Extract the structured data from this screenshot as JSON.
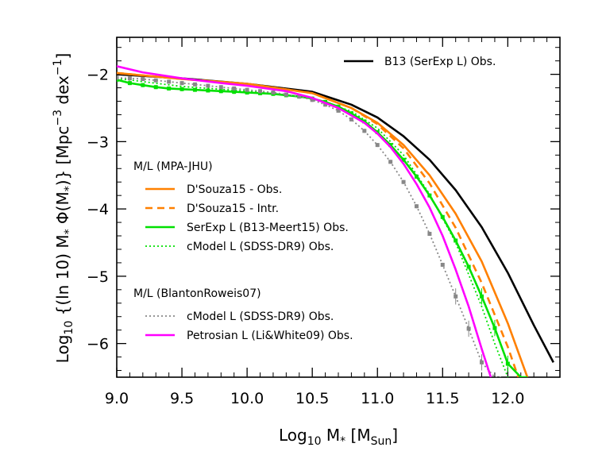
{
  "chart_data": {
    "type": "line",
    "title": "",
    "xlabel": {
      "main": "Log",
      "sub": "10",
      "var": " M",
      "star": "*",
      "unit_open": " [M",
      "unit_sub": "Sun",
      "unit_close": "]"
    },
    "ylabel": {
      "main": "Log",
      "sub": "10",
      "rest": " {(ln 10) M",
      "star": "*",
      "phi": " Φ(M",
      "star2": "*",
      "close": ")} [Mpc",
      "exp": "−3",
      "dex": " dex",
      "exp2": "−1",
      "end": "]"
    },
    "xlim": [
      9.0,
      12.4
    ],
    "ylim": [
      -6.5,
      -1.45
    ],
    "xticks": [
      {
        "value": 9.0,
        "label": "9.0"
      },
      {
        "value": 9.5,
        "label": "9.5"
      },
      {
        "value": 10.0,
        "label": "10.0"
      },
      {
        "value": 10.5,
        "label": "10.5"
      },
      {
        "value": 11.0,
        "label": "11.0"
      },
      {
        "value": 11.5,
        "label": "11.5"
      },
      {
        "value": 12.0,
        "label": "12.0"
      }
    ],
    "yticks": [
      {
        "value": -2,
        "label": "−2"
      },
      {
        "value": -3,
        "label": "−3"
      },
      {
        "value": -4,
        "label": "−4"
      },
      {
        "value": -5,
        "label": "−5"
      },
      {
        "value": -6,
        "label": "−6"
      }
    ],
    "legend_groups": [
      {
        "heading": "M/L (MPA-JHU)"
      },
      {
        "heading": "M/L (BlantonRoweis07)"
      }
    ],
    "series": [
      {
        "name": "B13 (SerExp L) Obs.",
        "color": "#000000",
        "dash": "solid",
        "group": -1,
        "markers": false,
        "x": [
          9.0,
          9.5,
          10.0,
          10.5,
          10.8,
          11.0,
          11.2,
          11.4,
          11.6,
          11.8,
          12.0,
          12.2,
          12.35
        ],
        "y": [
          -2.0,
          -2.06,
          -2.14,
          -2.26,
          -2.45,
          -2.64,
          -2.92,
          -3.27,
          -3.72,
          -4.27,
          -4.95,
          -5.73,
          -6.28
        ]
      },
      {
        "name": "D'Souza15 - Obs.",
        "color": "#ff8000",
        "dash": "solid",
        "group": 0,
        "markers": false,
        "x": [
          9.0,
          9.5,
          10.0,
          10.5,
          10.8,
          11.0,
          11.2,
          11.4,
          11.6,
          11.8,
          12.0,
          12.15
        ],
        "y": [
          -1.98,
          -2.07,
          -2.14,
          -2.28,
          -2.5,
          -2.72,
          -3.05,
          -3.5,
          -4.07,
          -4.78,
          -5.7,
          -6.5
        ]
      },
      {
        "name": "D'Souza15 - Intr.",
        "color": "#ff8000",
        "dash": "dashed",
        "group": 0,
        "markers": false,
        "x": [
          9.0,
          9.5,
          10.0,
          10.5,
          10.8,
          11.0,
          11.2,
          11.4,
          11.6,
          11.8,
          12.0,
          12.08
        ],
        "y": [
          -1.98,
          -2.07,
          -2.14,
          -2.28,
          -2.5,
          -2.74,
          -3.1,
          -3.62,
          -4.28,
          -5.1,
          -6.05,
          -6.5
        ]
      },
      {
        "name": "SerExp L (B13-Meert15) Obs.",
        "color": "#00e000",
        "dash": "solid",
        "group": 0,
        "markers": true,
        "x": [
          9.0,
          9.1,
          9.2,
          9.3,
          9.4,
          9.5,
          9.6,
          9.7,
          9.8,
          9.9,
          10.0,
          10.1,
          10.2,
          10.3,
          10.4,
          10.5,
          10.6,
          10.7,
          10.8,
          10.9,
          11.0,
          11.1,
          11.2,
          11.3,
          11.4,
          11.5,
          11.6,
          11.7,
          11.8,
          11.9,
          12.0,
          12.1,
          12.15
        ],
        "y": [
          -2.08,
          -2.13,
          -2.16,
          -2.19,
          -2.21,
          -2.22,
          -2.23,
          -2.24,
          -2.25,
          -2.26,
          -2.27,
          -2.28,
          -2.29,
          -2.31,
          -2.33,
          -2.36,
          -2.41,
          -2.48,
          -2.58,
          -2.7,
          -2.86,
          -3.05,
          -3.27,
          -3.52,
          -3.8,
          -4.12,
          -4.47,
          -4.86,
          -5.3,
          -5.77,
          -6.3,
          -6.5,
          -6.5
        ]
      },
      {
        "name": "cModel L (SDSS-DR9) Obs.",
        "color": "#00e000",
        "dash": "dotted",
        "group": 0,
        "markers": false,
        "x": [
          9.0,
          9.5,
          10.0,
          10.5,
          10.8,
          11.0,
          11.2,
          11.4,
          11.6,
          11.8,
          11.9,
          12.0
        ],
        "y": [
          -2.06,
          -2.18,
          -2.25,
          -2.35,
          -2.55,
          -2.8,
          -3.2,
          -3.78,
          -4.5,
          -5.45,
          -6.0,
          -6.5
        ]
      },
      {
        "name": "cModel L (SDSS-DR9) Obs.",
        "color": "#888888",
        "dash": "dotted",
        "group": 1,
        "markers": true,
        "x": [
          9.0,
          9.1,
          9.2,
          9.3,
          9.4,
          9.5,
          9.6,
          9.7,
          9.8,
          9.9,
          10.0,
          10.1,
          10.2,
          10.3,
          10.4,
          10.5,
          10.6,
          10.7,
          10.8,
          10.9,
          11.0,
          11.1,
          11.2,
          11.3,
          11.4,
          11.5,
          11.6,
          11.7,
          11.8,
          11.9,
          11.95
        ],
        "y": [
          -2.05,
          -2.06,
          -2.07,
          -2.09,
          -2.11,
          -2.13,
          -2.15,
          -2.17,
          -2.19,
          -2.21,
          -2.23,
          -2.25,
          -2.27,
          -2.3,
          -2.33,
          -2.38,
          -2.45,
          -2.54,
          -2.67,
          -2.84,
          -3.05,
          -3.3,
          -3.6,
          -3.96,
          -4.37,
          -4.83,
          -5.3,
          -5.78,
          -6.28,
          -6.5,
          -6.5
        ]
      },
      {
        "name": "Petrosian L (Li&White09) Obs.",
        "color": "#ff00ff",
        "dash": "solid",
        "group": 1,
        "markers": false,
        "x": [
          9.0,
          9.2,
          9.5,
          9.8,
          10.0,
          10.3,
          10.5,
          10.7,
          10.9,
          11.0,
          11.1,
          11.2,
          11.3,
          11.4,
          11.5,
          11.6,
          11.7,
          11.8,
          11.87
        ],
        "y": [
          -1.88,
          -1.97,
          -2.06,
          -2.13,
          -2.17,
          -2.25,
          -2.35,
          -2.5,
          -2.72,
          -2.88,
          -3.08,
          -3.33,
          -3.63,
          -3.98,
          -4.4,
          -4.9,
          -5.45,
          -6.08,
          -6.5
        ]
      }
    ]
  }
}
